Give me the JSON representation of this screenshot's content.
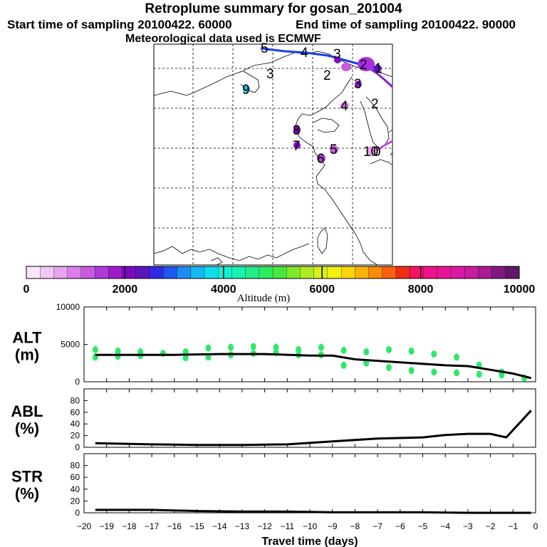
{
  "header": {
    "title": "Retroplume summary for gosan_201004",
    "start_label": "Start time of sampling 20100422. 60000",
    "end_label": "End time of sampling 20100422. 90000",
    "met_label": "Meteorological data used is ECMWF"
  },
  "map": {
    "plume_labels": [
      "5",
      "4",
      "3",
      "2",
      "1",
      "3",
      "2",
      "9",
      "3",
      "2",
      "4",
      "8",
      "7",
      "6",
      "5",
      "10",
      "0"
    ]
  },
  "colorbar": {
    "label": "Altitude (m)",
    "min": 0,
    "max": 10000,
    "tick_labels": [
      "0",
      "2000",
      "4000",
      "6000",
      "8000",
      "10000"
    ],
    "colors": [
      "#f9e6fb",
      "#f1c8f5",
      "#e6a4ee",
      "#d880e8",
      "#c85ae0",
      "#b13ad6",
      "#9a1ccb",
      "#7e09c2",
      "#5a16b8",
      "#2f2ae6",
      "#1f55f0",
      "#1e8cf4",
      "#18b8f0",
      "#10dcf0",
      "#12f0d2",
      "#18f0b0",
      "#20ee8a",
      "#2cec62",
      "#4ae83c",
      "#7ee82a",
      "#aeea20",
      "#d8ee18",
      "#f4f010",
      "#f8d80c",
      "#f8b40a",
      "#f88c0a",
      "#f66010",
      "#ee2e12",
      "#f2126a",
      "#f0128e",
      "#e81496",
      "#dc1aa0",
      "#c81e9c",
      "#a81c90",
      "#821a7e",
      "#621868"
    ],
    "accent_outline": "#000000"
  },
  "chart_data": [
    {
      "type": "scatter",
      "panel": "ALT",
      "ylabel_line1": "ALT",
      "ylabel_line2": "(m)",
      "ylim": [
        0,
        10000
      ],
      "y_ticks": [
        "0",
        "5000",
        "10000"
      ],
      "x_ticks": [
        "−20",
        "−19",
        "−18",
        "−17",
        "−16",
        "−15",
        "−14",
        "−13",
        "−12",
        "−11",
        "−10",
        "−9",
        "−8",
        "−7",
        "−6",
        "−5",
        "−4",
        "−3",
        "−2",
        "−1",
        "0"
      ],
      "xlim": [
        -20,
        0
      ],
      "scatter_color": "#2ee86a",
      "line_color": "#000000",
      "mean_line": {
        "x": [
          -19.5,
          -18,
          -16,
          -14,
          -12,
          -10,
          -9,
          -8,
          -6,
          -4,
          -3,
          -2,
          -1,
          -0.2
        ],
        "y": [
          3600,
          3600,
          3600,
          3700,
          3700,
          3500,
          3500,
          3000,
          2600,
          2200,
          2100,
          1600,
          1100,
          500
        ]
      },
      "scatter_points": {
        "x": [
          -19.5,
          -19.5,
          -18.5,
          -18.5,
          -17.5,
          -17.5,
          -16.5,
          -15.5,
          -15.5,
          -14.5,
          -14.5,
          -13.5,
          -13.5,
          -12.5,
          -12.5,
          -11.5,
          -11.5,
          -10.5,
          -10.5,
          -9.5,
          -9.5,
          -8.5,
          -8.5,
          -7.5,
          -7.5,
          -6.5,
          -6.5,
          -5.5,
          -5.5,
          -4.5,
          -4.5,
          -3.5,
          -3.5,
          -2.5,
          -2.5,
          -1.5,
          -1.5,
          -0.5
        ],
        "y": [
          4300,
          3300,
          4100,
          3400,
          4000,
          3500,
          3800,
          4000,
          3200,
          4500,
          3300,
          4600,
          3600,
          4700,
          3800,
          4600,
          3900,
          4300,
          3600,
          4600,
          3600,
          4200,
          2200,
          4000,
          2500,
          4300,
          1900,
          4100,
          1500,
          3700,
          1300,
          3300,
          1200,
          2200,
          1000,
          1300,
          900,
          500
        ]
      }
    },
    {
      "type": "line",
      "panel": "ABL",
      "ylabel_line1": "ABL",
      "ylabel_line2": "(%)",
      "ylim": [
        0,
        100
      ],
      "y_ticks": [
        "0",
        "20",
        "40",
        "60",
        "80"
      ],
      "xlim": [
        -20,
        0
      ],
      "x": [
        -19.5,
        -17,
        -15,
        -13,
        -11,
        -9,
        -7,
        -5,
        -4,
        -3,
        -2,
        -1.3,
        -0.2
      ],
      "y": [
        7,
        5,
        4,
        4,
        5,
        10,
        15,
        17,
        21,
        23,
        23,
        17,
        63
      ]
    },
    {
      "type": "line",
      "panel": "STR",
      "ylabel_line1": "STR",
      "ylabel_line2": "(%)",
      "ylim": [
        0,
        100
      ],
      "y_ticks": [
        "0",
        "20",
        "40",
        "60",
        "80"
      ],
      "xlim": [
        -20,
        0
      ],
      "xlabel": "Travel time (days)",
      "x": [
        -19.5,
        -17,
        -15,
        -13,
        -11,
        -9,
        -7,
        -5,
        -3,
        -1,
        -0.2
      ],
      "y": [
        5,
        5,
        3,
        2,
        2,
        1,
        1,
        1,
        0,
        0,
        0
      ]
    }
  ]
}
